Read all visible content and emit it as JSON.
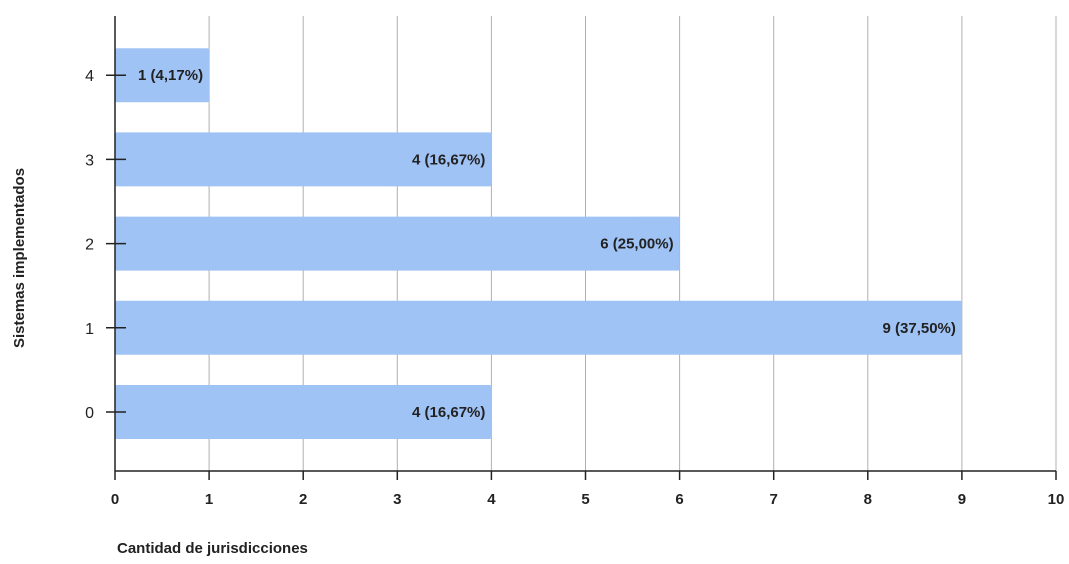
{
  "chart_data": {
    "type": "bar",
    "orientation": "horizontal",
    "title": "",
    "xlabel": "Cantidad de jurisdicciones",
    "ylabel": "Sistemas implementados",
    "categories": [
      "0",
      "1",
      "2",
      "3",
      "4"
    ],
    "values": [
      4,
      9,
      6,
      4,
      1
    ],
    "data_labels": [
      "4 (16,67%)",
      "9 (37,50%)",
      "6 (25,00%)",
      "4 (16,67%)",
      "1 (4,17%)"
    ],
    "xlim": [
      0,
      10
    ],
    "x_ticks": [
      "0",
      "1",
      "2",
      "3",
      "4",
      "5",
      "6",
      "7",
      "8",
      "9",
      "10"
    ],
    "grid": "vertical",
    "legend": "none",
    "colors": {
      "bar": "#a0c3f5",
      "grid": "#b0b0b0",
      "axis": "#222222",
      "text": "#222222"
    }
  }
}
